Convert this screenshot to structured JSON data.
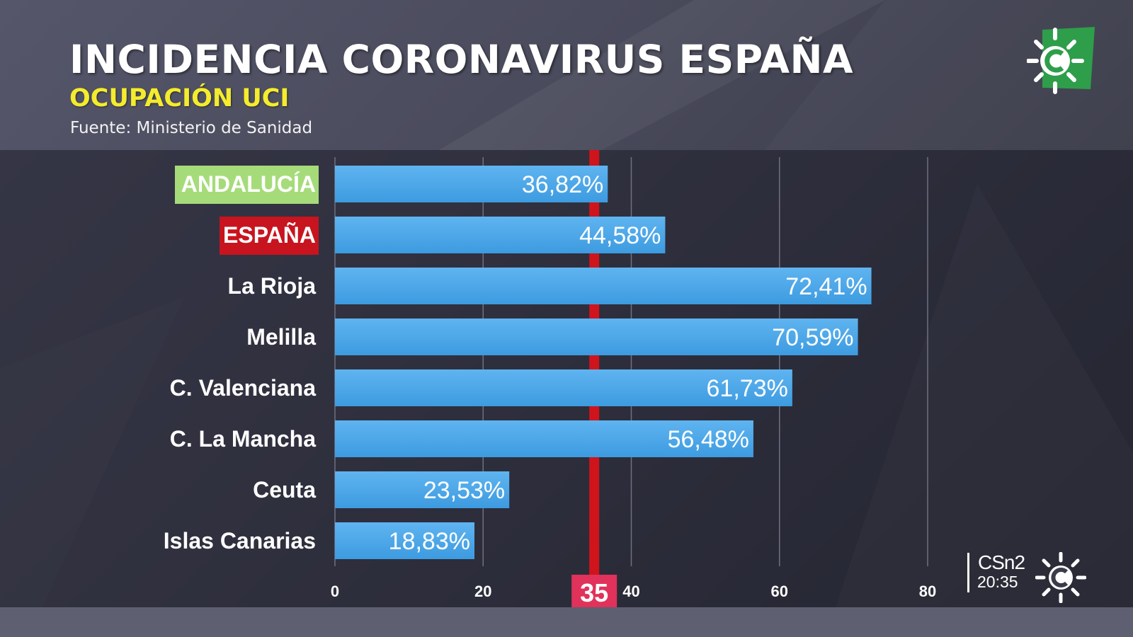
{
  "header": {
    "title": "INCIDENCIA CORONAVIRUS ESPAÑA",
    "subtitle": "OCUPACIÓN UCI",
    "source": "Fuente: Ministerio de Sanidad"
  },
  "channel": {
    "logo_icon": "canal-sur-sun-logo-icon",
    "bug_logo": "CSn2",
    "time": "20:35"
  },
  "chart_data": {
    "type": "bar",
    "orientation": "horizontal",
    "title": "INCIDENCIA CORONAVIRUS ESPAÑA",
    "subtitle": "OCUPACIÓN UCI",
    "categories": [
      "ANDALUCÍA",
      "ESPAÑA",
      "La Rioja",
      "Melilla",
      "C. Valenciana",
      "C. La Mancha",
      "Ceuta",
      "Islas Canarias"
    ],
    "values": [
      36.82,
      44.58,
      72.41,
      70.59,
      61.73,
      56.48,
      23.53,
      18.83
    ],
    "value_labels": [
      "36,82%",
      "44,58%",
      "72,41%",
      "70,59%",
      "61,73%",
      "56,48%",
      "23,53%",
      "18,83%"
    ],
    "xlim": [
      0,
      80
    ],
    "xticks": [
      0,
      20,
      40,
      60,
      80
    ],
    "xtick_labels": [
      "0",
      "20",
      "40",
      "60",
      "80"
    ],
    "threshold": {
      "value": 35,
      "label": "35"
    },
    "highlight": [
      {
        "category": "ANDALUCÍA",
        "color": "#a6db7a",
        "text_color": "#ffffff"
      },
      {
        "category": "ESPAÑA",
        "color": "#c8141e",
        "text_color": "#ffffff"
      }
    ],
    "grid": true,
    "colors": {
      "bar": "#3d9be0",
      "bar_light": "#5fb4f0",
      "threshold": "#d0141c",
      "threshold_label_bg": "#e0325a",
      "gridline": "#6f7080"
    }
  }
}
